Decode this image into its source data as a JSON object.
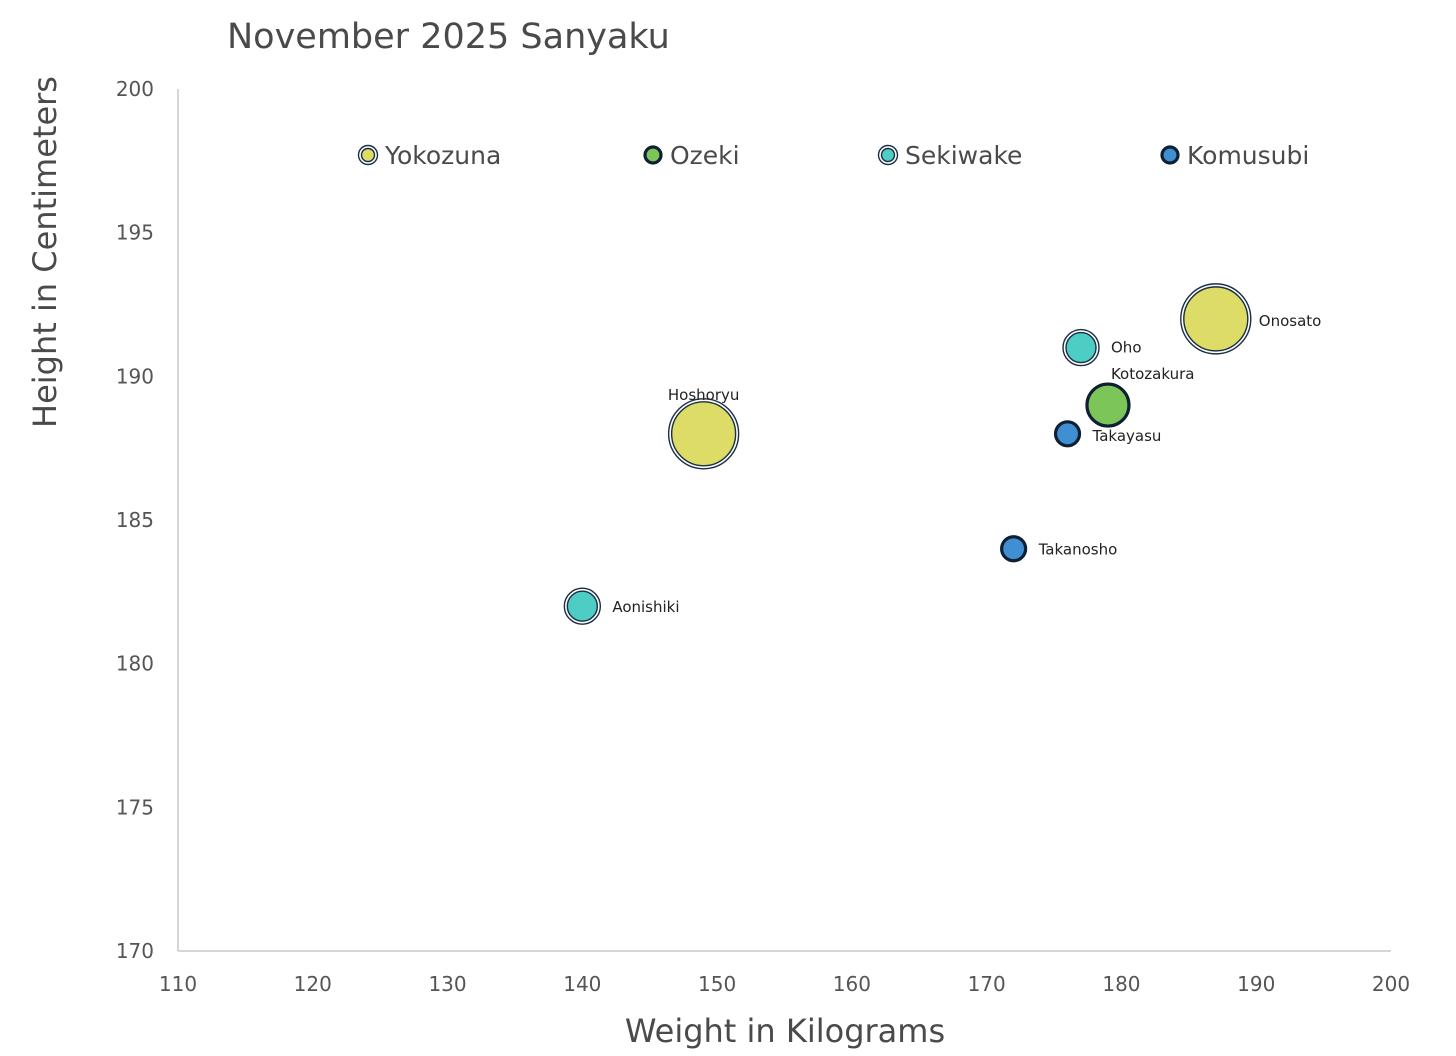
{
  "chart_data": {
    "type": "bubble",
    "title": "November 2025 Sanyaku",
    "xlabel": "Weight in Kilograms",
    "ylabel": "Height in Centimeters",
    "xlim": [
      110,
      200
    ],
    "ylim": [
      170,
      200
    ],
    "xticks": [
      "110",
      "120",
      "130",
      "140",
      "150",
      "160",
      "170",
      "180",
      "190",
      "200"
    ],
    "yticks": [
      "170",
      "175",
      "180",
      "185",
      "190",
      "195",
      "200"
    ],
    "grid": false,
    "legend_position": "top",
    "legend": [
      {
        "name": "Yokozuna",
        "color": "#dcdc66",
        "ring": "double"
      },
      {
        "name": "Ozeki",
        "color": "#7cc659",
        "ring": "thick"
      },
      {
        "name": "Sekiwake",
        "color": "#4ecdc4",
        "ring": "double"
      },
      {
        "name": "Komusubi",
        "color": "#3f8fd2",
        "ring": "thick"
      }
    ],
    "series": [
      {
        "name": "Yokozuna",
        "color": "#dcdc66",
        "points": [
          {
            "label": "Onosato",
            "x": 187,
            "y": 192,
            "size": 3
          },
          {
            "label": "Hoshoryu",
            "x": 149,
            "y": 188,
            "size": 3
          }
        ]
      },
      {
        "name": "Ozeki",
        "color": "#7cc659",
        "points": [
          {
            "label": "Kotozakura",
            "x": 179,
            "y": 189,
            "size": 2
          }
        ]
      },
      {
        "name": "Sekiwake",
        "color": "#4ecdc4",
        "points": [
          {
            "label": "Oho",
            "x": 177,
            "y": 191,
            "size": 1.5
          },
          {
            "label": "Aonishiki",
            "x": 140,
            "y": 182,
            "size": 1.5
          }
        ]
      },
      {
        "name": "Komusubi",
        "color": "#3f8fd2",
        "points": [
          {
            "label": "Takayasu",
            "x": 176,
            "y": 188,
            "size": 1
          },
          {
            "label": "Takanosho",
            "x": 172,
            "y": 184,
            "size": 1
          }
        ]
      }
    ]
  }
}
